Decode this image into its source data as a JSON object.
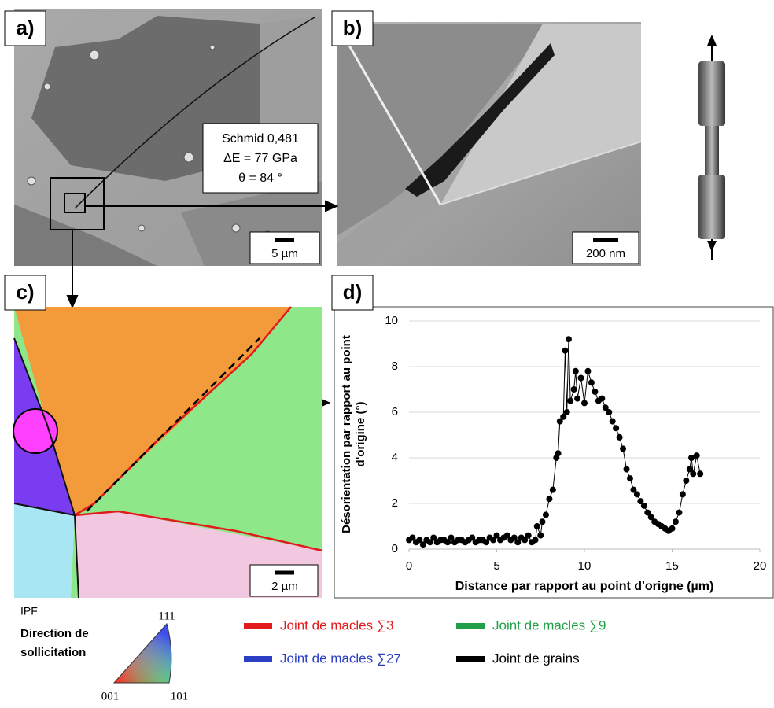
{
  "panels": {
    "a": {
      "label": "a)",
      "box": [
        "Schmid 0,481",
        "ΔE = 77 GPa",
        "θ =  84 °"
      ],
      "scale": "5 µm"
    },
    "b": {
      "label": "b)",
      "scale": "200 nm"
    },
    "c": {
      "label": "c)",
      "scale": "2 µm"
    },
    "d": {
      "label": "d)"
    }
  },
  "chart_data": {
    "type": "line",
    "x_label": "Distance par rapport au point d'origne (µm)",
    "y_label": "Désorientation par rapport au point d'origine (°)",
    "color": "#000000",
    "markers": true,
    "grid": true,
    "xlim": [
      0,
      20
    ],
    "ylim": [
      0,
      10
    ],
    "xticks": [
      0,
      5,
      10,
      15,
      20
    ],
    "yticks": [
      0,
      2,
      4,
      6,
      8,
      10
    ],
    "x": [
      0,
      0.2,
      0.4,
      0.6,
      0.8,
      1.0,
      1.2,
      1.4,
      1.6,
      1.8,
      2.0,
      2.2,
      2.4,
      2.6,
      2.8,
      3.0,
      3.2,
      3.4,
      3.6,
      3.8,
      4.0,
      4.2,
      4.4,
      4.6,
      4.8,
      5.0,
      5.2,
      5.4,
      5.6,
      5.8,
      6.0,
      6.2,
      6.4,
      6.6,
      6.8,
      7.0,
      7.2,
      7.3,
      7.5,
      7.6,
      7.8,
      8.0,
      8.2,
      8.4,
      8.5,
      8.6,
      8.8,
      8.9,
      9.0,
      9.1,
      9.2,
      9.4,
      9.5,
      9.6,
      9.8,
      10.0,
      10.2,
      10.4,
      10.6,
      10.8,
      11.0,
      11.2,
      11.4,
      11.6,
      11.8,
      12.0,
      12.2,
      12.4,
      12.6,
      12.8,
      13.0,
      13.2,
      13.4,
      13.6,
      13.8,
      14.0,
      14.2,
      14.4,
      14.6,
      14.8,
      15.0,
      15.2,
      15.4,
      15.6,
      15.8,
      16.0,
      16.1,
      16.2,
      16.4,
      16.6
    ],
    "values": [
      0.4,
      0.5,
      0.3,
      0.4,
      0.2,
      0.4,
      0.3,
      0.5,
      0.3,
      0.4,
      0.4,
      0.3,
      0.5,
      0.3,
      0.4,
      0.4,
      0.3,
      0.4,
      0.5,
      0.3,
      0.4,
      0.4,
      0.3,
      0.5,
      0.4,
      0.6,
      0.4,
      0.5,
      0.6,
      0.4,
      0.5,
      0.3,
      0.5,
      0.4,
      0.6,
      0.3,
      0.4,
      1.0,
      0.6,
      1.2,
      1.5,
      2.2,
      2.6,
      4.0,
      4.2,
      5.6,
      5.8,
      8.7,
      6.0,
      9.2,
      6.5,
      7.0,
      7.8,
      6.6,
      7.5,
      6.4,
      7.8,
      7.3,
      6.9,
      6.5,
      6.6,
      6.2,
      6.0,
      5.6,
      5.3,
      4.9,
      4.4,
      3.5,
      3.1,
      2.6,
      2.4,
      2.1,
      1.9,
      1.6,
      1.4,
      1.2,
      1.1,
      1.0,
      0.9,
      0.8,
      0.9,
      1.2,
      1.6,
      2.4,
      3.0,
      3.5,
      4.0,
      3.3,
      4.1,
      3.3
    ]
  },
  "ipf": {
    "title": "IPF",
    "direction": "Direction de sollicitation",
    "corners": [
      "111",
      "001",
      "101"
    ]
  },
  "legend": [
    {
      "label": "Joint de macles ∑3",
      "color": "#e31a1c"
    },
    {
      "label": "Joint de macles ∑27",
      "color": "#2b3fc4"
    },
    {
      "label": "Joint de macles ∑9",
      "color": "#22a048"
    },
    {
      "label": "Joint de grains",
      "color": "#000000"
    }
  ]
}
